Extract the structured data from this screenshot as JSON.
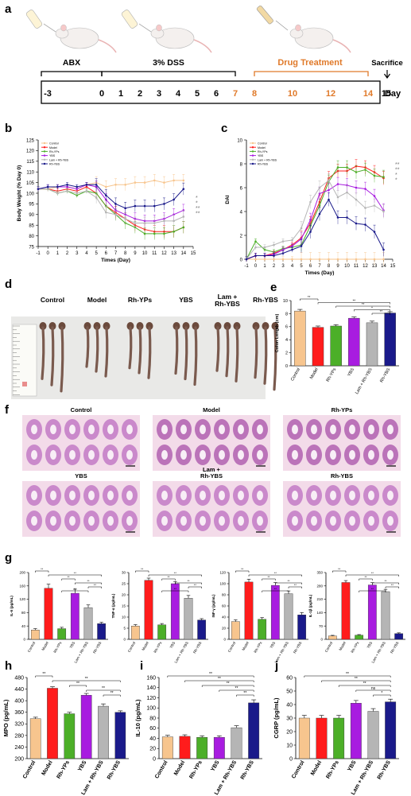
{
  "panel_letters": [
    "a",
    "b",
    "c",
    "d",
    "e",
    "f",
    "g",
    "h",
    "i",
    "j"
  ],
  "colors": {
    "control": "#f7c58e",
    "model": "#ff1c1c",
    "rhyps": "#4caf28",
    "ybs": "#a81ce0",
    "lam": "#b5b5b5",
    "rhybs": "#1a1a8a",
    "drug": "#e07a2a"
  },
  "timeline": {
    "phases": [
      "ABX",
      "3% DSS",
      "Drug Treatment"
    ],
    "sacrifice": "Sacrifice",
    "day_label": "Day",
    "days": [
      "-3",
      "0",
      "1",
      "2",
      "3",
      "4",
      "5",
      "6",
      "7",
      "8",
      "10",
      "12",
      "14",
      "15"
    ]
  },
  "panel_d": {
    "groups": [
      "Control",
      "Model",
      "Rh-YPs",
      "YBS",
      "Lam +\nRh-YBS",
      "Rh-YBS"
    ]
  },
  "panel_f": {
    "labels": [
      "Control",
      "Model",
      "Rh-YPs",
      "YBS",
      "Lam +\nRh-YBS",
      "Rh-YBS"
    ]
  },
  "chart_data": [
    {
      "panel": "b",
      "type": "line",
      "xlabel": "Times (Day)",
      "ylabel": "Body Weight (% Day 0)",
      "xlim": [
        -1,
        15
      ],
      "ylim": [
        75,
        125
      ],
      "xticks": [
        -1,
        0,
        1,
        2,
        3,
        4,
        5,
        6,
        7,
        8,
        9,
        10,
        11,
        12,
        13,
        14,
        15
      ],
      "yticks": [
        75,
        80,
        85,
        90,
        95,
        100,
        105,
        110,
        115,
        120,
        125
      ],
      "x": [
        -1,
        0,
        1,
        2,
        3,
        4,
        5,
        6,
        7,
        8,
        9,
        10,
        11,
        12,
        13,
        14
      ],
      "legend": [
        "Control",
        "Model",
        "Rh-YPs",
        "YBS",
        "Lam + Rh-YBS",
        "Rh-YBS"
      ],
      "significance": [
        "*",
        "*",
        "**",
        "**"
      ],
      "series": [
        {
          "name": "Control",
          "key": "control",
          "values": [
            102,
            102,
            103,
            103,
            102,
            104,
            105,
            103,
            104,
            104,
            105,
            105,
            106,
            105,
            106,
            106
          ]
        },
        {
          "name": "Model",
          "key": "model",
          "values": [
            102,
            102,
            101,
            102,
            101,
            103,
            100,
            94,
            91,
            88,
            85,
            83,
            82,
            82,
            82,
            84
          ]
        },
        {
          "name": "Rh-YPs",
          "key": "rhyps",
          "values": [
            102,
            102,
            100,
            101,
            99,
            101,
            100,
            94,
            90,
            86,
            84,
            81,
            81,
            81,
            82,
            84
          ]
        },
        {
          "name": "YBS",
          "key": "ybs",
          "values": [
            102,
            103,
            103,
            103,
            102,
            104,
            103,
            97,
            92,
            90,
            88,
            87,
            87,
            88,
            90,
            92
          ]
        },
        {
          "name": "Lam + Rh-YBS",
          "key": "lam",
          "values": [
            102,
            102,
            100,
            101,
            100,
            101,
            98,
            91,
            90,
            88,
            86,
            86,
            86,
            87,
            87,
            89
          ]
        },
        {
          "name": "Rh-YBS",
          "key": "rhybs",
          "values": [
            102,
            103,
            103,
            104,
            103,
            104,
            104,
            99,
            95,
            93,
            94,
            94,
            94,
            95,
            97,
            102
          ]
        }
      ]
    },
    {
      "panel": "c",
      "type": "line",
      "xlabel": "Times (Day)",
      "ylabel": "DAI",
      "xlim": [
        -1,
        15
      ],
      "ylim": [
        0,
        10
      ],
      "xticks": [
        -1,
        0,
        1,
        2,
        3,
        4,
        5,
        6,
        7,
        8,
        9,
        10,
        11,
        12,
        13,
        14,
        15
      ],
      "yticks": [
        0,
        2,
        4,
        6,
        8,
        10
      ],
      "x": [
        -1,
        0,
        1,
        2,
        3,
        4,
        5,
        6,
        7,
        8,
        9,
        10,
        11,
        12,
        13,
        14
      ],
      "legend": [
        "Control",
        "Model",
        "Rh-YPs",
        "YBS",
        "Lam + Rh-YBS",
        "Rh-YBS"
      ],
      "significance": [
        "**",
        "**",
        "*",
        "*"
      ],
      "series": [
        {
          "name": "Control",
          "key": "control",
          "values": [
            0,
            0,
            0,
            0,
            0,
            0,
            0,
            0,
            0,
            0,
            0,
            0,
            0,
            0,
            0,
            0
          ]
        },
        {
          "name": "Model",
          "key": "model",
          "values": [
            0,
            0.3,
            0.3,
            0.5,
            0.8,
            1.2,
            1.8,
            3,
            4.8,
            6.8,
            7.4,
            7.4,
            7.8,
            7.7,
            7.3,
            6.8
          ]
        },
        {
          "name": "Rh-YPs",
          "key": "rhyps",
          "values": [
            0,
            1.5,
            0.8,
            0.6,
            0.9,
            1.0,
            1.2,
            2.8,
            4.5,
            6.5,
            7.7,
            7.7,
            7.3,
            7.5,
            7.0,
            6.9
          ]
        },
        {
          "name": "YBS",
          "key": "ybs",
          "values": [
            0,
            0.3,
            0.3,
            0.4,
            0.8,
            1.1,
            1.7,
            3.3,
            5.5,
            5.8,
            6.3,
            6.2,
            6.0,
            5.9,
            5.3,
            4.1
          ]
        },
        {
          "name": "Lam + Rh-YBS",
          "key": "lam",
          "values": [
            0,
            1.0,
            1.0,
            1.2,
            1.5,
            1.6,
            2.6,
            4.8,
            6.0,
            6.6,
            5.2,
            5.6,
            5.0,
            4.3,
            4.5,
            4.0
          ]
        },
        {
          "name": "Rh-YBS",
          "key": "rhybs",
          "values": [
            0,
            0.3,
            0.3,
            0.3,
            0.5,
            0.8,
            1.1,
            2.3,
            3.8,
            5.0,
            3.5,
            3.5,
            3.0,
            2.9,
            2.3,
            0.8
          ]
        }
      ]
    },
    {
      "panel": "e",
      "type": "bar",
      "ylabel": "Colon Length (cm)",
      "ylim": [
        0,
        10
      ],
      "yticks": [
        0,
        2,
        4,
        6,
        8,
        10
      ],
      "categories": [
        "Control",
        "Model",
        "Rh-YPs",
        "YBS",
        "Lam + Rh-YBS",
        "Rh-YBS"
      ],
      "values": [
        8.4,
        5.9,
        6.1,
        7.3,
        6.6,
        8.1
      ],
      "errors": [
        0.25,
        0.2,
        0.2,
        0.2,
        0.25,
        0.2
      ],
      "significance": [
        "**",
        "**",
        "**",
        "*",
        "**"
      ]
    },
    {
      "panel": "g1",
      "type": "bar",
      "ylabel": "IL-6 (pg/mL)",
      "ylim": [
        0,
        200
      ],
      "yticks": [
        0,
        40,
        80,
        120,
        160,
        200
      ],
      "categories": [
        "Control",
        "Model",
        "Rh-YPs",
        "YBS",
        "Lam + Rh-YBS",
        "Rh-YBS"
      ],
      "values": [
        28,
        153,
        32,
        138,
        95,
        47
      ],
      "errors": [
        4,
        12,
        4,
        12,
        8,
        4
      ],
      "significance": [
        "**",
        "**",
        "**",
        "**",
        "**",
        "**"
      ]
    },
    {
      "panel": "g2",
      "type": "bar",
      "ylabel": "TNF-α (pg/mL)",
      "ylim": [
        0,
        30
      ],
      "yticks": [
        0,
        5,
        10,
        15,
        20,
        25,
        30
      ],
      "categories": [
        "Control",
        "Model",
        "Rh-YPs",
        "YBS",
        "Lam + Rh-YBS",
        "Rh-YBS"
      ],
      "values": [
        6,
        26.5,
        6.5,
        25,
        18.5,
        8.7
      ],
      "errors": [
        0.6,
        1.0,
        0.6,
        1.0,
        1.2,
        0.6
      ],
      "significance": [
        "**",
        "**",
        "**",
        "**",
        "**",
        "**"
      ]
    },
    {
      "panel": "g3",
      "type": "bar",
      "ylabel": "INF-γ (pg/mL)",
      "ylim": [
        0,
        120
      ],
      "yticks": [
        0,
        20,
        40,
        60,
        80,
        100,
        120
      ],
      "categories": [
        "Control",
        "Model",
        "Rh-YPs",
        "YBS",
        "Lam + Rh-YBS",
        "Rh-YBS"
      ],
      "values": [
        32,
        103,
        36,
        97,
        82,
        44
      ],
      "errors": [
        3,
        5,
        3,
        5,
        5,
        4
      ],
      "significance": [
        "**",
        "**",
        "**",
        "**",
        "**",
        "**"
      ]
    },
    {
      "panel": "g4",
      "type": "bar",
      "ylabel": "IL-1β (pg/mL)",
      "ylim": [
        0,
        350
      ],
      "yticks": [
        0,
        70,
        140,
        210,
        280,
        350
      ],
      "categories": [
        "Control",
        "Model",
        "Rh-YPs",
        "YBS",
        "Lam + Rh-YBS",
        "Rh-YBS"
      ],
      "values": [
        18,
        298,
        22,
        285,
        250,
        30
      ],
      "errors": [
        3,
        10,
        3,
        12,
        12,
        4
      ],
      "significance": [
        "**",
        "**",
        "**",
        "**",
        "**",
        "**"
      ]
    },
    {
      "panel": "h",
      "type": "bar",
      "ylabel": "MPO (pg/mL)",
      "ylim": [
        200,
        480
      ],
      "yticks": [
        200,
        240,
        280,
        320,
        360,
        400,
        440,
        480
      ],
      "categories": [
        "Control",
        "Model",
        "Rh-YPs",
        "YBS",
        "Lam + Rh-YBS",
        "Rh-YBS"
      ],
      "values": [
        338,
        443,
        355,
        419,
        381,
        360
      ],
      "errors": [
        5,
        5,
        5,
        6,
        8,
        5
      ],
      "significance": [
        "**",
        "**",
        "**",
        "**",
        "**"
      ]
    },
    {
      "panel": "i",
      "type": "bar",
      "ylabel": "IL-10 (pg/mL)",
      "ylim": [
        0,
        160
      ],
      "yticks": [
        0,
        20,
        40,
        60,
        80,
        100,
        120,
        140,
        160
      ],
      "categories": [
        "Control",
        "Model",
        "Rh-YPs",
        "YBS",
        "Lam + Rh-YBS",
        "Rh-YBS"
      ],
      "values": [
        43,
        44,
        42,
        42,
        61,
        110
      ],
      "errors": [
        3,
        3,
        3,
        3,
        4,
        6
      ],
      "significance": [
        "**",
        "**",
        "**",
        "**",
        "**"
      ]
    },
    {
      "panel": "j",
      "type": "bar",
      "ylabel": "CGRP (pg/mL)",
      "ylim": [
        0,
        60
      ],
      "yticks": [
        0,
        10,
        20,
        30,
        40,
        50,
        60
      ],
      "categories": [
        "Control",
        "Model",
        "Rh-YPs",
        "YBS",
        "Lam + Rh-YBS",
        "Rh-YBS"
      ],
      "values": [
        30,
        30,
        30,
        41,
        35,
        42
      ],
      "errors": [
        2,
        2,
        2,
        2,
        2,
        2
      ],
      "significance": [
        "**",
        "**",
        "**",
        "ns",
        "*"
      ]
    }
  ]
}
